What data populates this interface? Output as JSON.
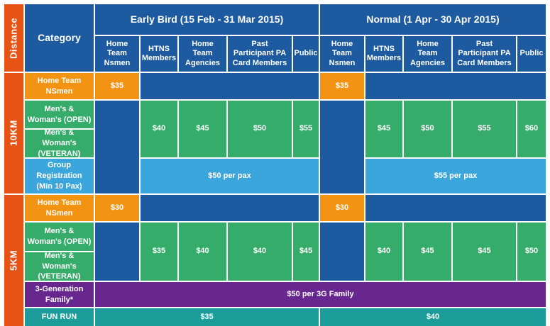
{
  "colors": {
    "blue": "#1d5aa0",
    "orange": "#f39314",
    "green": "#36ac6a",
    "light_blue": "#3aa6dc",
    "purple": "#68278f",
    "teal": "#1c9d9a",
    "distance_red": "#e75314",
    "grid_line": "#ffffff"
  },
  "header": {
    "distance": "Distance",
    "category": "Category",
    "early_bird": "Early Bird (15 Feb - 31 Mar 2015)",
    "normal": "Normal (1 Apr - 30 Apr 2015)",
    "sub_columns": [
      "Home Team Nsmen",
      "HTNS Members",
      "Home Team Agencies",
      "Past Participant PA Card Members",
      "Public"
    ]
  },
  "sections": {
    "ten_km": {
      "distance": "10KM",
      "categories": {
        "home_team": "Home Team NSmen",
        "open": "Men's & Woman's (OPEN)",
        "veteran": "Men's & Woman's (VETERAN)",
        "group": "Group Registration (Min 10 Pax)"
      },
      "early_bird": {
        "home_team": "$35",
        "htns": "$40",
        "agencies": "$45",
        "past": "$50",
        "public": "$55",
        "group": "$50 per pax"
      },
      "normal": {
        "home_team": "$35",
        "htns": "$45",
        "agencies": "$50",
        "past": "$55",
        "public": "$60",
        "group": "$55 per pax"
      }
    },
    "five_km": {
      "distance": "5KM",
      "categories": {
        "home_team": "Home Team NSmen",
        "open": "Men's & Woman's (OPEN)",
        "veteran": "Men's & Woman's (VETERAN)",
        "three_gen": "3-Generation Family*",
        "fun_run": "FUN RUN"
      },
      "early_bird": {
        "home_team": "$30",
        "htns": "$35",
        "agencies": "$40",
        "past": "$40",
        "public": "$45",
        "fun_run": "$35"
      },
      "normal": {
        "home_team": "$30",
        "htns": "$40",
        "agencies": "$45",
        "past": "$45",
        "public": "$50",
        "fun_run": "$40"
      },
      "three_gen_price": "$50 per 3G Family"
    }
  }
}
